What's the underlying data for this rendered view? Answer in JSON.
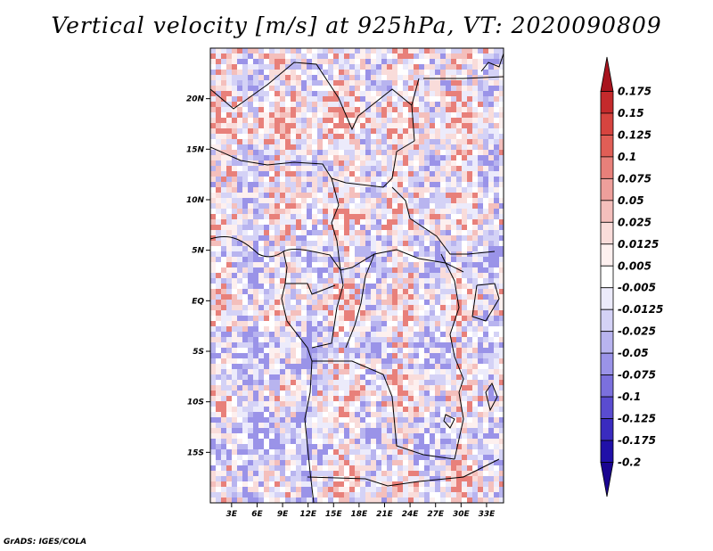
{
  "title": "Vertical velocity [m/s] at 925hPa, VT: 2020090809",
  "footer": "GrADS: IGES/COLA",
  "chart_data": {
    "type": "heatmap",
    "title": "Vertical velocity [m/s] at 925hPa, VT: 2020090809",
    "variable": "Vertical velocity",
    "units": "m/s",
    "level": "925hPa",
    "valid_time": "2020090809",
    "x_ticks": [
      "3E",
      "6E",
      "9E",
      "12E",
      "15E",
      "18E",
      "21E",
      "24E",
      "27E",
      "30E",
      "33E"
    ],
    "x_tick_values": [
      3,
      6,
      9,
      12,
      15,
      18,
      21,
      24,
      27,
      30,
      33
    ],
    "y_ticks": [
      "20N",
      "15N",
      "10N",
      "5N",
      "EQ",
      "5S",
      "10S",
      "15S"
    ],
    "y_tick_values": [
      20,
      15,
      10,
      5,
      0,
      -5,
      -10,
      -15
    ],
    "xlim": [
      0.5,
      35
    ],
    "ylim": [
      -20,
      25
    ],
    "colorbar": {
      "levels": [
        "0.175",
        "0.15",
        "0.125",
        "0.1",
        "0.075",
        "0.05",
        "0.025",
        "0.0125",
        "0.005",
        "-0.005",
        "-0.0125",
        "-0.025",
        "-0.05",
        "-0.075",
        "-0.1",
        "-0.125",
        "-0.175",
        "-0.2"
      ],
      "colors": [
        "#a8141e",
        "#c42a2c",
        "#d6443f",
        "#e05e56",
        "#e8807a",
        "#ee9f9b",
        "#f4bfbc",
        "#f9dcda",
        "#fdf0ef",
        "#ffffff",
        "#ecebfb",
        "#d4d2f6",
        "#b8b4ef",
        "#9a93e8",
        "#7b70dd",
        "#5a4cd0",
        "#3a2bbf",
        "#2010a8",
        "#1a0590"
      ]
    }
  }
}
